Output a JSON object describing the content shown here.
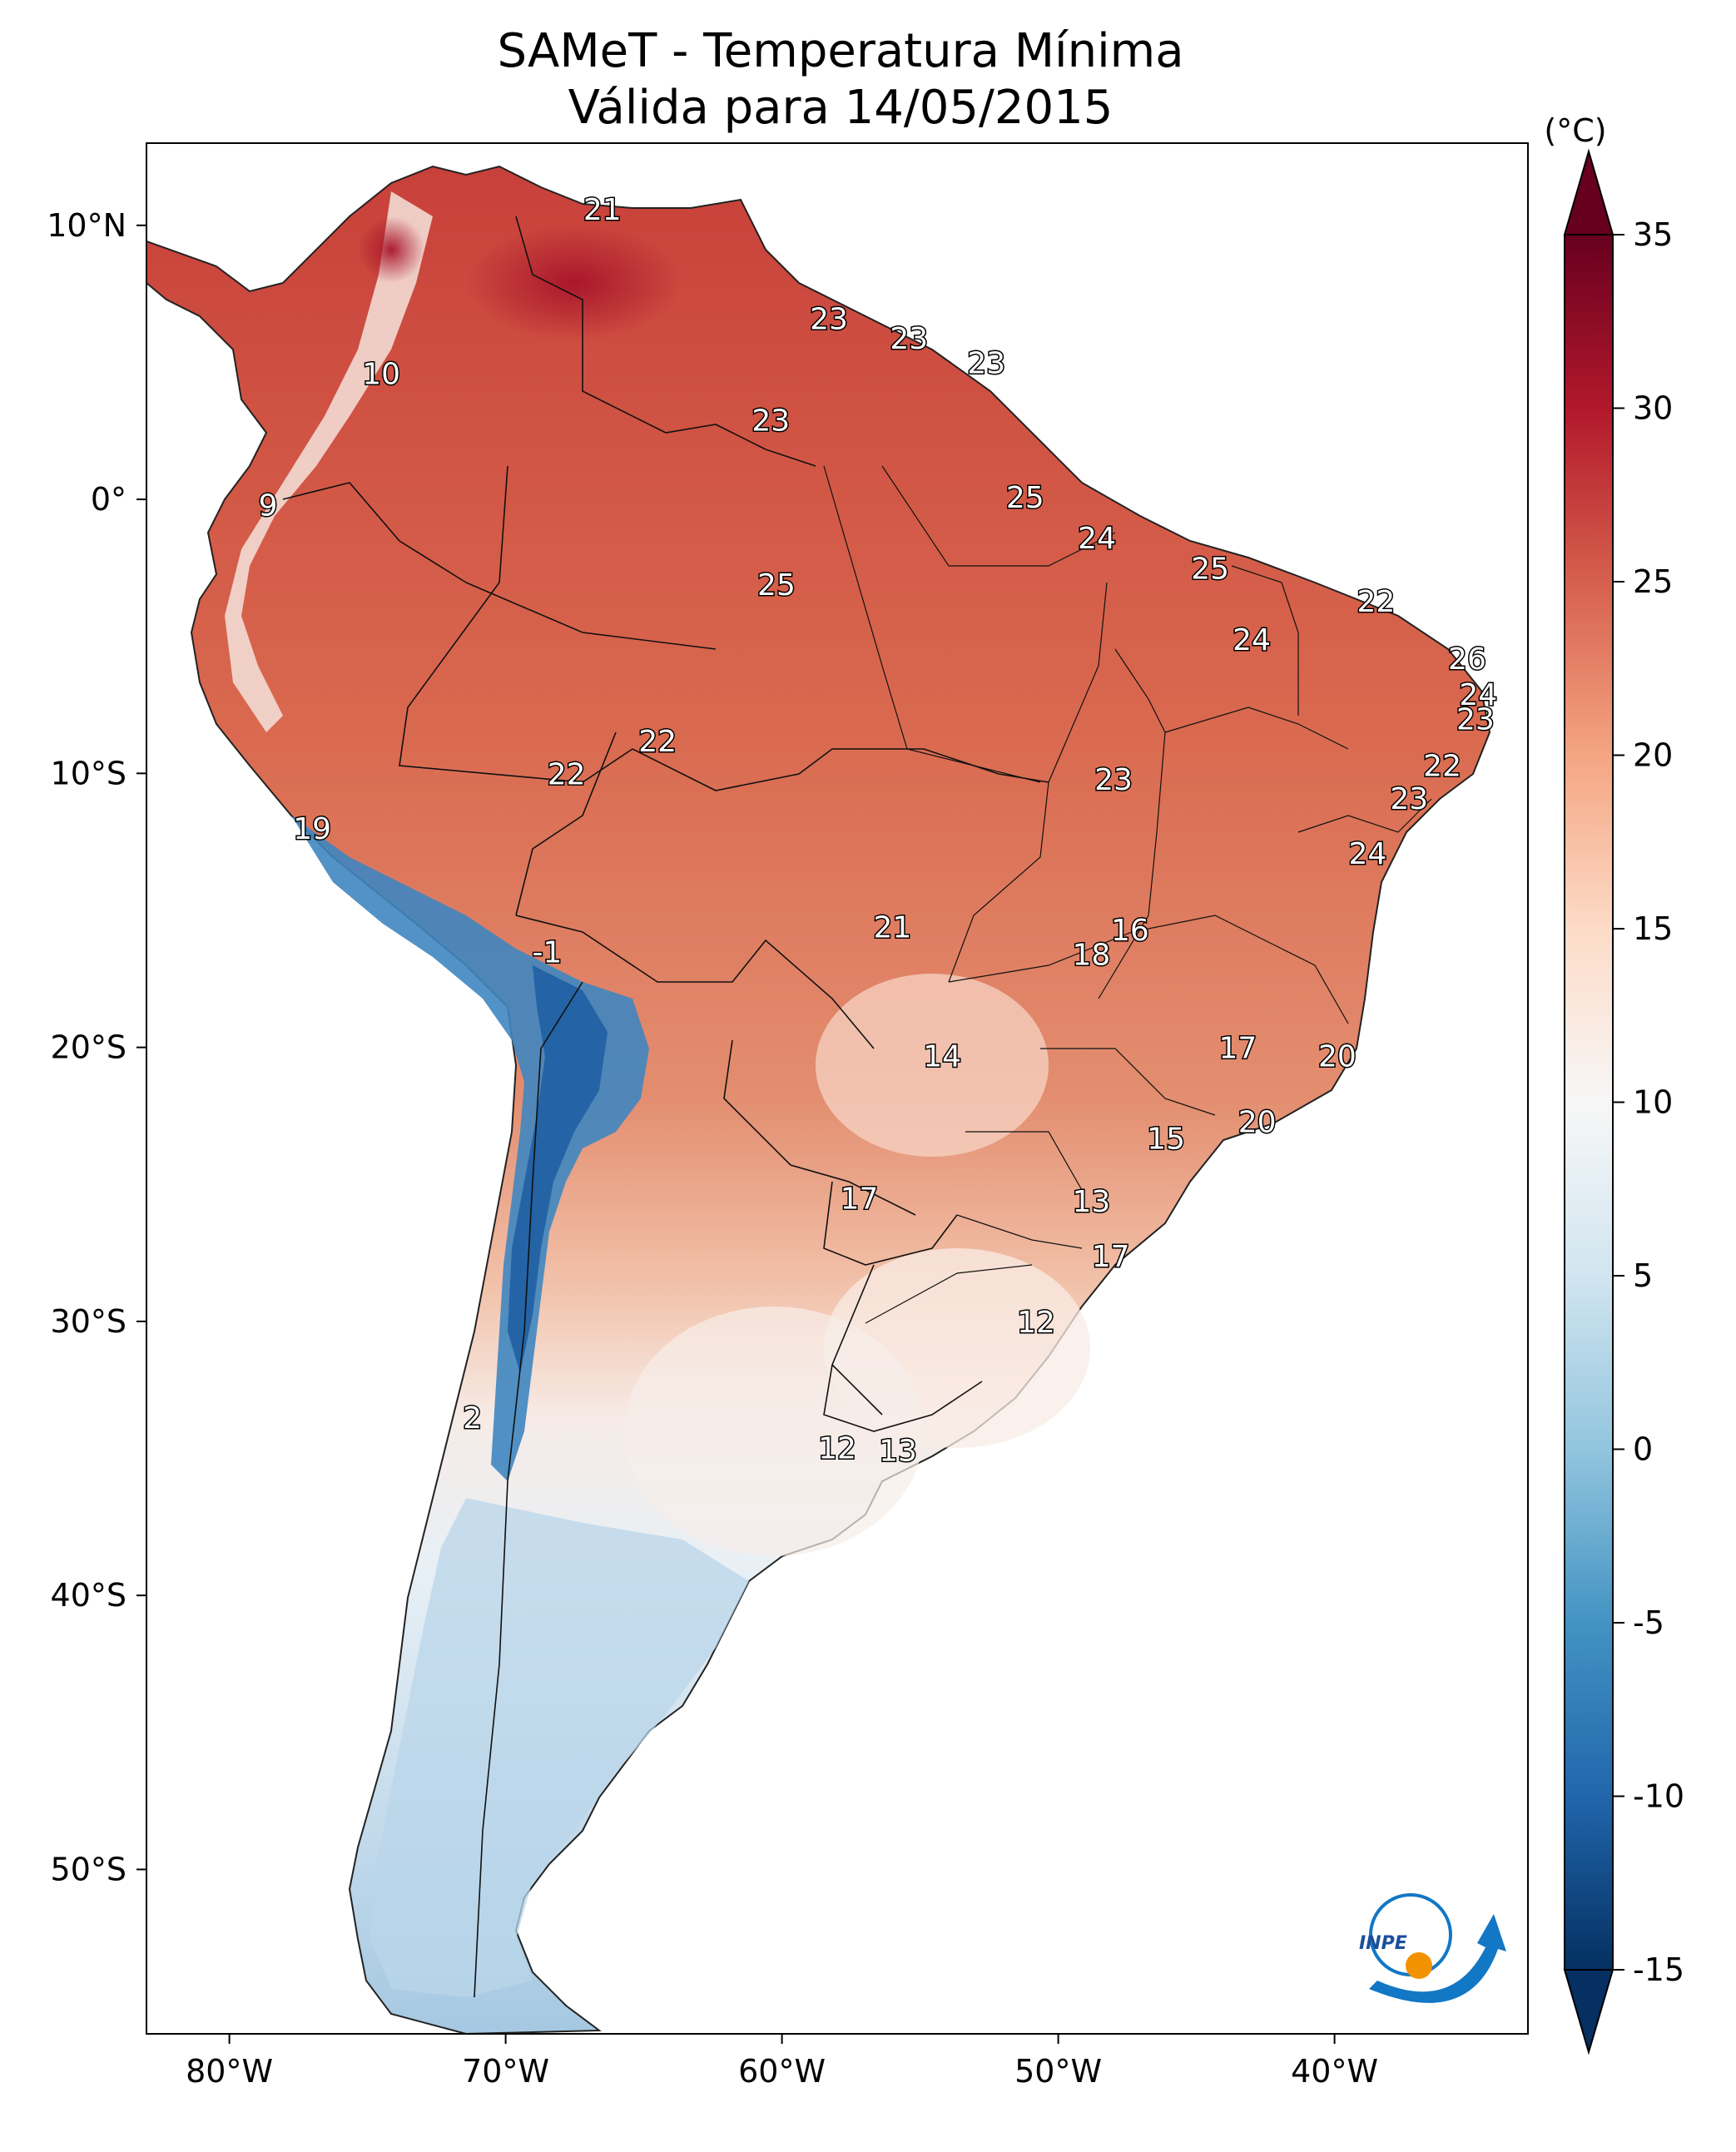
{
  "title": {
    "line1": "SAMeT - Temperatura Mínima",
    "line2": "Válida para 14/05/2015"
  },
  "colorbar": {
    "unit": "(°C)",
    "ticks": [
      "35",
      "30",
      "25",
      "20",
      "15",
      "10",
      "5",
      "0",
      "-5",
      "-10",
      "-15"
    ],
    "range": [
      -15,
      35
    ],
    "colormap": "RdBu_r",
    "colors": [
      "#053061",
      "#2166ac",
      "#4393c3",
      "#92c5de",
      "#d1e5f0",
      "#f7f7f7",
      "#fddbc7",
      "#f4a582",
      "#d6604d",
      "#b2182b",
      "#67001f"
    ]
  },
  "axes": {
    "lon_labels": [
      "80°W",
      "70°W",
      "60°W",
      "50°W",
      "40°W"
    ],
    "lat_labels": [
      "10°N",
      "0°",
      "10°S",
      "20°S",
      "30°S",
      "40°S",
      "50°S"
    ],
    "lon_range": [
      -83,
      -33
    ],
    "lat_range": [
      -56,
      13
    ]
  },
  "map_labels": [
    {
      "text": "21",
      "lon": -66.5,
      "lat": 10.6
    },
    {
      "text": "10",
      "lon": -74.5,
      "lat": 4.6
    },
    {
      "text": "23",
      "lon": -58.3,
      "lat": 6.6
    },
    {
      "text": "23",
      "lon": -55.4,
      "lat": 5.9
    },
    {
      "text": "23",
      "lon": -52.6,
      "lat": 5.0
    },
    {
      "text": "23",
      "lon": -60.4,
      "lat": 2.9
    },
    {
      "text": "9",
      "lon": -78.6,
      "lat": -0.2
    },
    {
      "text": "25",
      "lon": -51.2,
      "lat": 0.1
    },
    {
      "text": "24",
      "lon": -48.6,
      "lat": -1.4
    },
    {
      "text": "25",
      "lon": -44.5,
      "lat": -2.5
    },
    {
      "text": "25",
      "lon": -60.2,
      "lat": -3.1
    },
    {
      "text": "22",
      "lon": -38.5,
      "lat": -3.7
    },
    {
      "text": "24",
      "lon": -43.0,
      "lat": -5.1
    },
    {
      "text": "26",
      "lon": -35.2,
      "lat": -5.8
    },
    {
      "text": "24",
      "lon": -34.8,
      "lat": -7.1
    },
    {
      "text": "23",
      "lon": -34.9,
      "lat": -8.0
    },
    {
      "text": "22",
      "lon": -64.5,
      "lat": -8.8
    },
    {
      "text": "22",
      "lon": -36.1,
      "lat": -9.7
    },
    {
      "text": "22",
      "lon": -67.8,
      "lat": -10.0
    },
    {
      "text": "23",
      "lon": -48.0,
      "lat": -10.2
    },
    {
      "text": "23",
      "lon": -37.3,
      "lat": -10.9
    },
    {
      "text": "19",
      "lon": -77.0,
      "lat": -12.0
    },
    {
      "text": "24",
      "lon": -38.8,
      "lat": -12.9
    },
    {
      "text": "21",
      "lon": -56.0,
      "lat": -15.6
    },
    {
      "text": "16",
      "lon": -47.4,
      "lat": -15.7
    },
    {
      "text": "18",
      "lon": -48.8,
      "lat": -16.6
    },
    {
      "text": "-1",
      "lon": -68.5,
      "lat": -16.5
    },
    {
      "text": "14",
      "lon": -54.2,
      "lat": -20.3
    },
    {
      "text": "17",
      "lon": -43.5,
      "lat": -20.0
    },
    {
      "text": "20",
      "lon": -39.9,
      "lat": -20.3
    },
    {
      "text": "20",
      "lon": -42.8,
      "lat": -22.7
    },
    {
      "text": "15",
      "lon": -46.1,
      "lat": -23.3
    },
    {
      "text": "17",
      "lon": -57.2,
      "lat": -25.5
    },
    {
      "text": "13",
      "lon": -48.8,
      "lat": -25.6
    },
    {
      "text": "17",
      "lon": -48.1,
      "lat": -27.6
    },
    {
      "text": "12",
      "lon": -50.8,
      "lat": -30.0
    },
    {
      "text": "2",
      "lon": -71.2,
      "lat": -33.5
    },
    {
      "text": "12",
      "lon": -58.0,
      "lat": -34.6
    },
    {
      "text": "13",
      "lon": -55.8,
      "lat": -34.7
    }
  ],
  "logo": {
    "text": "INPE"
  }
}
